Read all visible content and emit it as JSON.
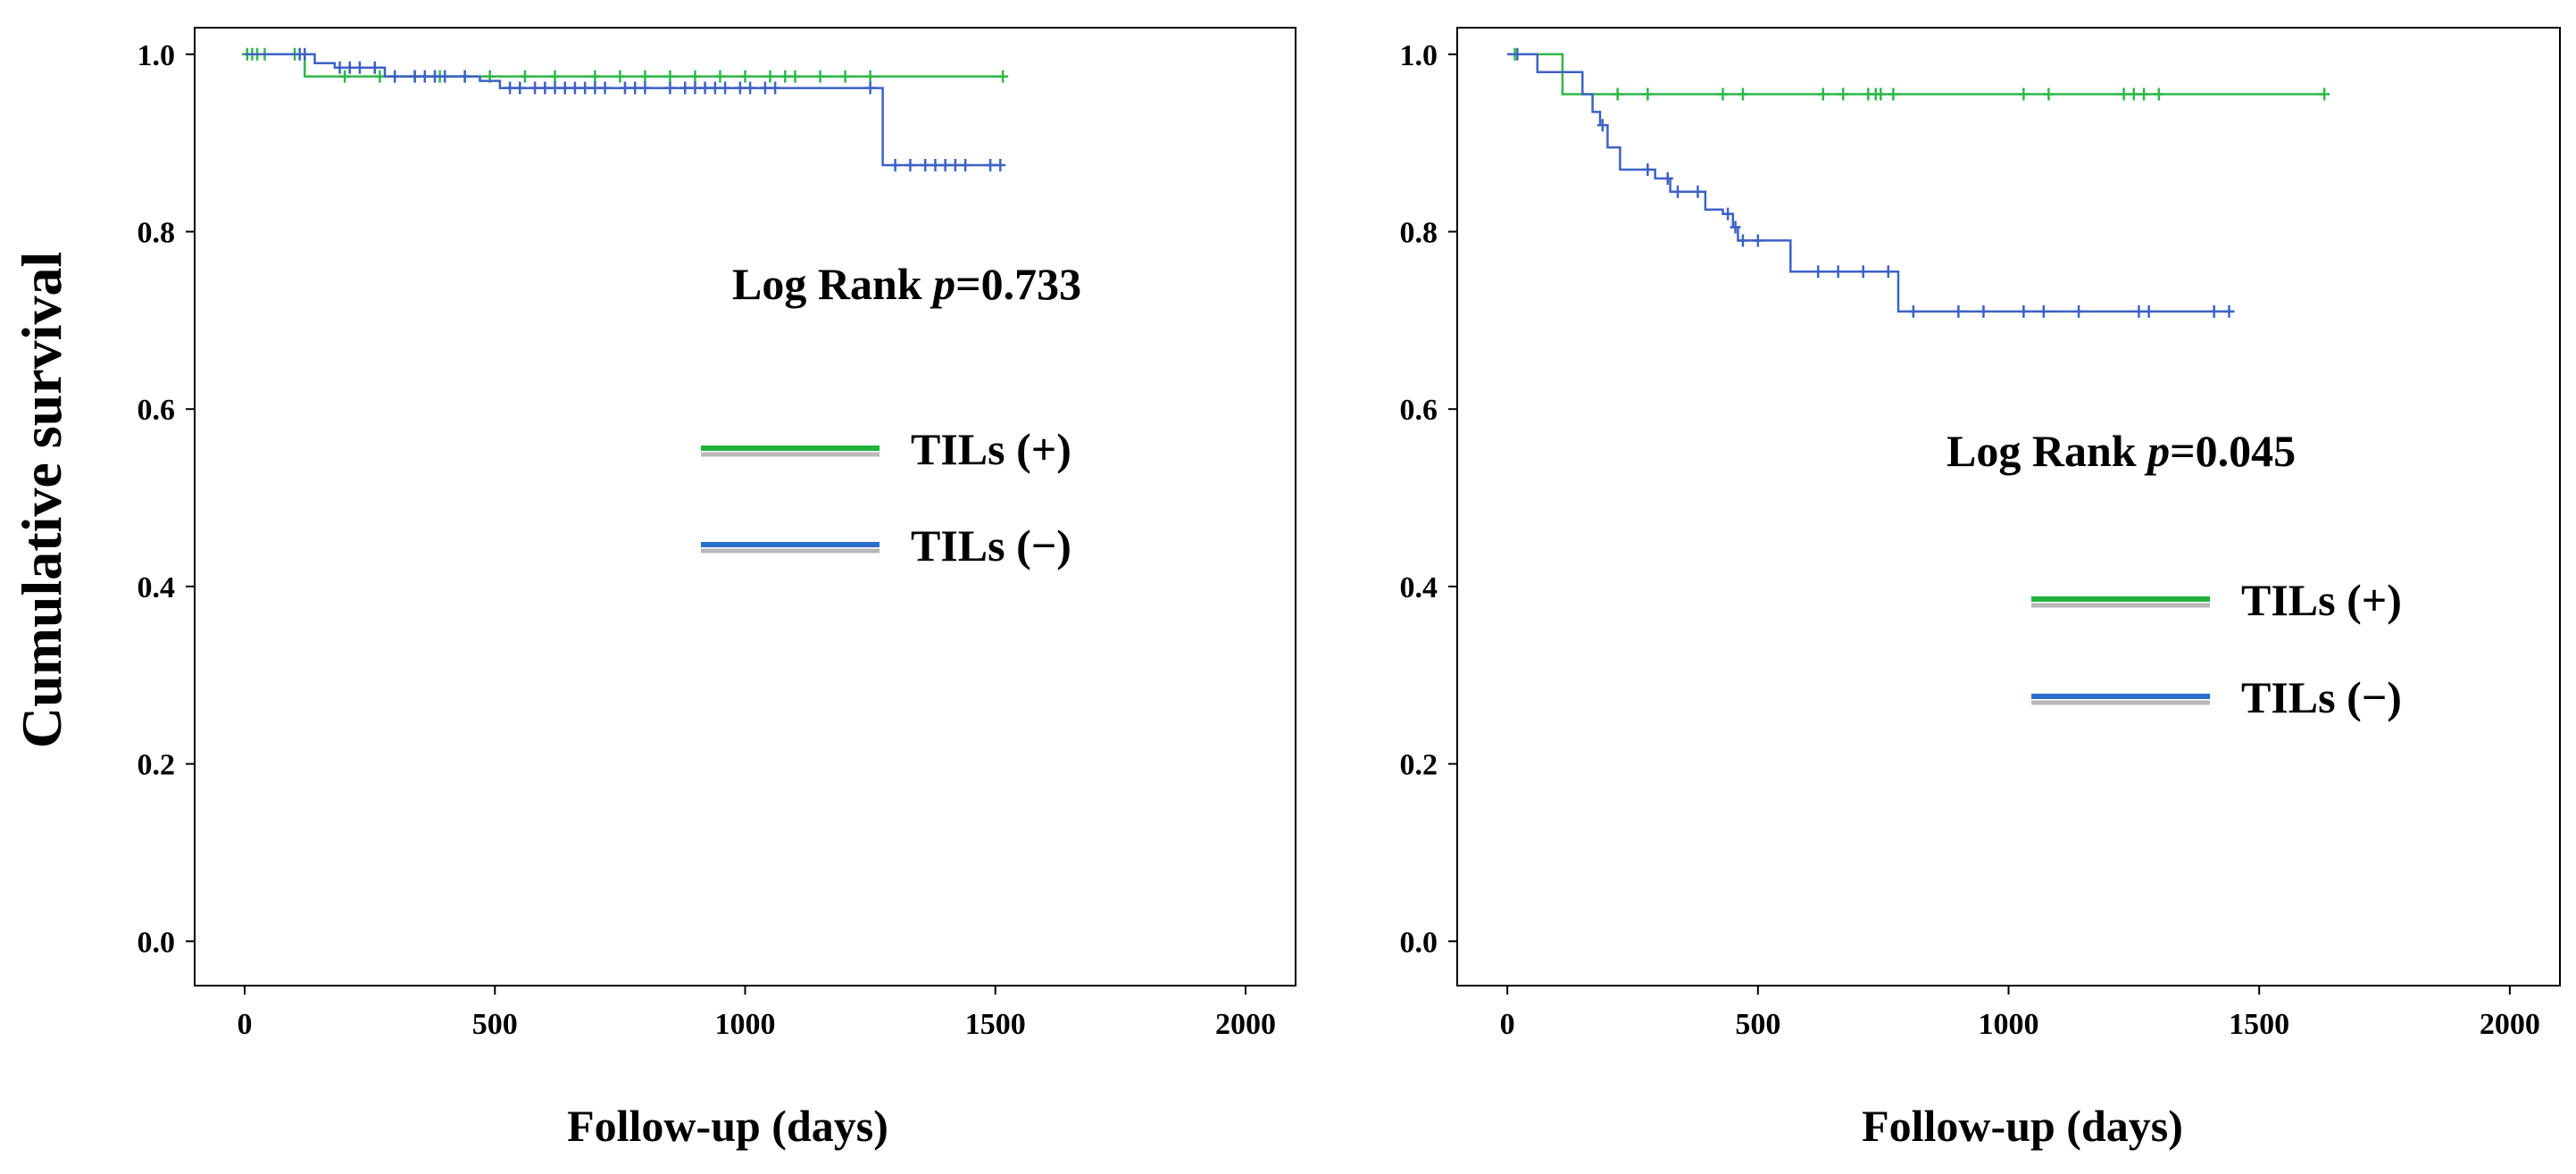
{
  "ylabel": "Cumulative survival",
  "colors": {
    "tils_pos": "#2db84a",
    "tils_neg": "#3d62c4",
    "legend_pos": "#1fb33c",
    "legend_neg": "#2a6fc9",
    "legend_shadow": "#b8b8b8"
  },
  "chart_data": [
    {
      "type": "line",
      "subtype": "kaplan-meier",
      "xlabel": "Follow-up (days)",
      "ylabel": "Cumulative survival",
      "xlim": [
        -100,
        2100
      ],
      "ylim": [
        -0.05,
        1.03
      ],
      "xticks": [
        0,
        500,
        1000,
        1500,
        2000
      ],
      "yticks": [
        0.0,
        0.2,
        0.4,
        0.6,
        0.8,
        1.0
      ],
      "xtick_labels": [
        "0",
        "500",
        "1000",
        "1500",
        "2000"
      ],
      "ytick_labels": [
        "0.0",
        "0.2",
        "0.4",
        "0.6",
        "0.8",
        "1.0"
      ],
      "annotation": {
        "prefix": "Log Rank ",
        "italic": "p",
        "suffix": "=0.733"
      },
      "legend": [
        {
          "label": "TILs (+)",
          "series": "tils_pos"
        },
        {
          "label": "TILs (−)",
          "series": "tils_neg"
        }
      ],
      "series": [
        {
          "name": "TILs (+)",
          "key": "tils_pos",
          "steps": [
            [
              0,
              1.0
            ],
            [
              120,
              0.975
            ],
            [
              1515,
              0.975
            ]
          ],
          "censored": [
            [
              5,
              1.0
            ],
            [
              15,
              1.0
            ],
            [
              25,
              1.0
            ],
            [
              40,
              1.0
            ],
            [
              100,
              1.0
            ],
            [
              200,
              0.975
            ],
            [
              270,
              0.975
            ],
            [
              340,
              0.975
            ],
            [
              390,
              0.975
            ],
            [
              440,
              0.975
            ],
            [
              490,
              0.975
            ],
            [
              560,
              0.975
            ],
            [
              620,
              0.975
            ],
            [
              700,
              0.975
            ],
            [
              750,
              0.975
            ],
            [
              800,
              0.975
            ],
            [
              850,
              0.975
            ],
            [
              900,
              0.975
            ],
            [
              950,
              0.975
            ],
            [
              1000,
              0.975
            ],
            [
              1050,
              0.975
            ],
            [
              1080,
              0.975
            ],
            [
              1100,
              0.975
            ],
            [
              1150,
              0.975
            ],
            [
              1200,
              0.975
            ],
            [
              1250,
              0.975
            ],
            [
              1515,
              0.975
            ]
          ]
        },
        {
          "name": "TILs (−)",
          "key": "tils_neg",
          "steps": [
            [
              0,
              1.0
            ],
            [
              140,
              0.99
            ],
            [
              180,
              0.985
            ],
            [
              280,
              0.975
            ],
            [
              470,
              0.97
            ],
            [
              510,
              0.962
            ],
            [
              1275,
              0.962
            ],
            [
              1275,
              0.875
            ],
            [
              1510,
              0.875
            ]
          ],
          "censored": [
            [
              110,
              1.0
            ],
            [
              120,
              1.0
            ],
            [
              190,
              0.985
            ],
            [
              210,
              0.985
            ],
            [
              230,
              0.985
            ],
            [
              260,
              0.985
            ],
            [
              300,
              0.975
            ],
            [
              340,
              0.975
            ],
            [
              360,
              0.975
            ],
            [
              380,
              0.975
            ],
            [
              400,
              0.975
            ],
            [
              440,
              0.975
            ],
            [
              530,
              0.962
            ],
            [
              550,
              0.962
            ],
            [
              580,
              0.962
            ],
            [
              600,
              0.962
            ],
            [
              620,
              0.962
            ],
            [
              640,
              0.962
            ],
            [
              660,
              0.962
            ],
            [
              680,
              0.962
            ],
            [
              700,
              0.962
            ],
            [
              720,
              0.962
            ],
            [
              760,
              0.962
            ],
            [
              780,
              0.962
            ],
            [
              800,
              0.962
            ],
            [
              850,
              0.962
            ],
            [
              880,
              0.962
            ],
            [
              900,
              0.962
            ],
            [
              920,
              0.962
            ],
            [
              940,
              0.962
            ],
            [
              960,
              0.962
            ],
            [
              990,
              0.962
            ],
            [
              1010,
              0.962
            ],
            [
              1040,
              0.962
            ],
            [
              1060,
              0.962
            ],
            [
              1250,
              0.962
            ],
            [
              1300,
              0.875
            ],
            [
              1330,
              0.875
            ],
            [
              1360,
              0.875
            ],
            [
              1380,
              0.875
            ],
            [
              1400,
              0.875
            ],
            [
              1420,
              0.875
            ],
            [
              1440,
              0.875
            ],
            [
              1490,
              0.875
            ],
            [
              1510,
              0.875
            ]
          ]
        }
      ]
    },
    {
      "type": "line",
      "subtype": "kaplan-meier",
      "xlabel": "Follow-up (days)",
      "ylabel": "",
      "xlim": [
        -100,
        2100
      ],
      "ylim": [
        -0.05,
        1.03
      ],
      "xticks": [
        0,
        500,
        1000,
        1500,
        2000
      ],
      "yticks": [
        0.0,
        0.2,
        0.4,
        0.6,
        0.8,
        1.0
      ],
      "xtick_labels": [
        "0",
        "500",
        "1000",
        "1500",
        "2000"
      ],
      "ytick_labels": [
        "0.0",
        "0.2",
        "0.4",
        "0.6",
        "0.8",
        "1.0"
      ],
      "annotation": {
        "prefix": "Log Rank ",
        "italic": "p",
        "suffix": "=0.045"
      },
      "legend": [
        {
          "label": "TILs (+)",
          "series": "tils_pos"
        },
        {
          "label": "TILs (−)",
          "series": "tils_neg"
        }
      ],
      "series": [
        {
          "name": "TILs (+)",
          "key": "tils_pos",
          "steps": [
            [
              0,
              1.0
            ],
            [
              110,
              1.0
            ],
            [
              110,
              0.955
            ],
            [
              1630,
              0.955
            ]
          ],
          "censored": [
            [
              15,
              1.0
            ],
            [
              220,
              0.955
            ],
            [
              280,
              0.955
            ],
            [
              430,
              0.955
            ],
            [
              470,
              0.955
            ],
            [
              630,
              0.955
            ],
            [
              670,
              0.955
            ],
            [
              720,
              0.955
            ],
            [
              735,
              0.955
            ],
            [
              745,
              0.955
            ],
            [
              770,
              0.955
            ],
            [
              1030,
              0.955
            ],
            [
              1080,
              0.955
            ],
            [
              1230,
              0.955
            ],
            [
              1250,
              0.955
            ],
            [
              1270,
              0.955
            ],
            [
              1300,
              0.955
            ],
            [
              1630,
              0.955
            ]
          ]
        },
        {
          "name": "TILs (−)",
          "key": "tils_neg",
          "steps": [
            [
              0,
              1.0
            ],
            [
              60,
              0.98
            ],
            [
              150,
              0.955
            ],
            [
              170,
              0.935
            ],
            [
              185,
              0.92
            ],
            [
              200,
              0.895
            ],
            [
              225,
              0.87
            ],
            [
              290,
              0.87
            ],
            [
              295,
              0.86
            ],
            [
              325,
              0.845
            ],
            [
              390,
              0.845
            ],
            [
              395,
              0.825
            ],
            [
              430,
              0.82
            ],
            [
              450,
              0.805
            ],
            [
              460,
              0.79
            ],
            [
              560,
              0.79
            ],
            [
              565,
              0.755
            ],
            [
              770,
              0.755
            ],
            [
              780,
              0.71
            ],
            [
              1450,
              0.71
            ]
          ],
          "censored": [
            [
              20,
              1.0
            ],
            [
              190,
              0.92
            ],
            [
              280,
              0.87
            ],
            [
              320,
              0.86
            ],
            [
              340,
              0.845
            ],
            [
              380,
              0.845
            ],
            [
              440,
              0.82
            ],
            [
              455,
              0.805
            ],
            [
              470,
              0.79
            ],
            [
              500,
              0.79
            ],
            [
              620,
              0.755
            ],
            [
              660,
              0.755
            ],
            [
              710,
              0.755
            ],
            [
              760,
              0.755
            ],
            [
              810,
              0.71
            ],
            [
              900,
              0.71
            ],
            [
              950,
              0.71
            ],
            [
              1030,
              0.71
            ],
            [
              1070,
              0.71
            ],
            [
              1140,
              0.71
            ],
            [
              1260,
              0.71
            ],
            [
              1280,
              0.71
            ],
            [
              1410,
              0.71
            ],
            [
              1440,
              0.71
            ]
          ]
        }
      ]
    }
  ]
}
